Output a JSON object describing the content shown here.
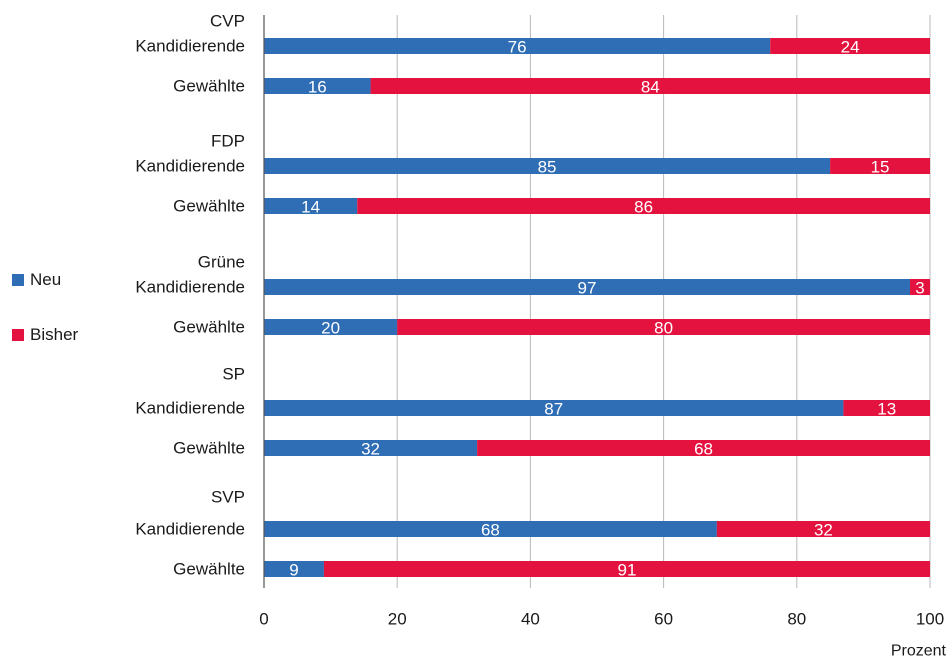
{
  "chart_data": {
    "type": "bar",
    "orientation": "horizontal",
    "stacked": true,
    "groups": [
      {
        "party": "CVP",
        "rows": [
          {
            "label": "Kandidierende",
            "neu": 76,
            "bisher": 24
          },
          {
            "label": "Gewählte",
            "neu": 16,
            "bisher": 84
          }
        ]
      },
      {
        "party": "FDP",
        "rows": [
          {
            "label": "Kandidierende",
            "neu": 85,
            "bisher": 15
          },
          {
            "label": "Gewählte",
            "neu": 14,
            "bisher": 86
          }
        ]
      },
      {
        "party": "Grüne",
        "rows": [
          {
            "label": "Kandidierende",
            "neu": 97,
            "bisher": 3
          },
          {
            "label": "Gewählte",
            "neu": 20,
            "bisher": 80
          }
        ]
      },
      {
        "party": "SP",
        "rows": [
          {
            "label": "Kandidierende",
            "neu": 87,
            "bisher": 13
          },
          {
            "label": "Gewählte",
            "neu": 32,
            "bisher": 68
          }
        ]
      },
      {
        "party": "SVP",
        "rows": [
          {
            "label": "Kandidierende",
            "neu": 68,
            "bisher": 32
          },
          {
            "label": "Gewählte",
            "neu": 9,
            "bisher": 91
          }
        ]
      }
    ],
    "series": [
      {
        "name": "Neu",
        "color": "#2f6db5"
      },
      {
        "name": "Bisher",
        "color": "#e4123f"
      }
    ],
    "xlim": [
      0,
      100
    ],
    "xticks": [
      0,
      20,
      40,
      60,
      80,
      100
    ],
    "xlabel": "Prozent",
    "grid": true,
    "legend_position": "left"
  }
}
